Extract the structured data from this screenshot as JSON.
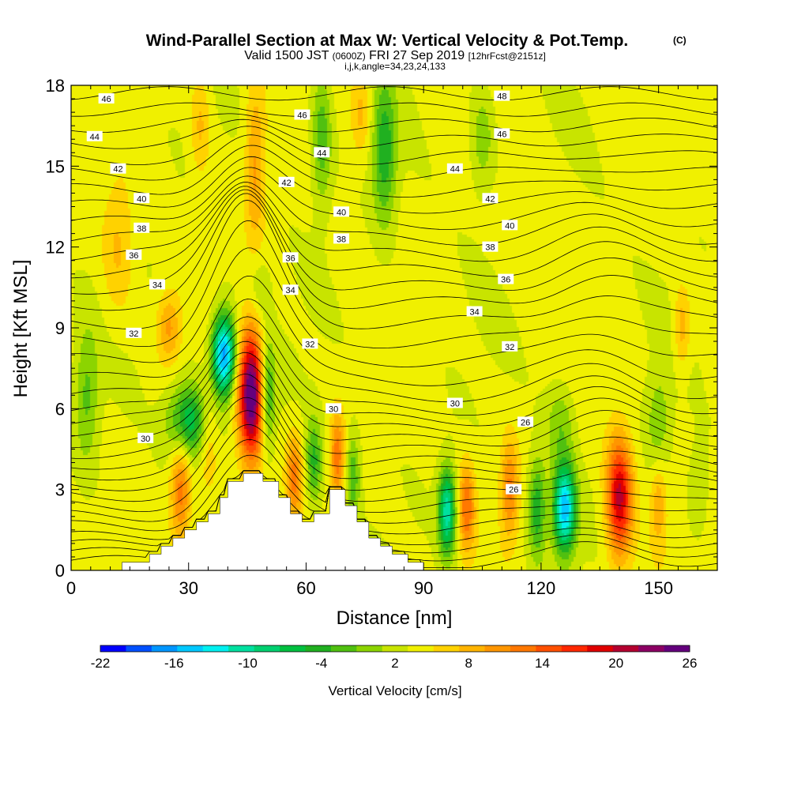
{
  "title": {
    "main": "Wind-Parallel Section at Max W: Vertical Velocity & Pot.Temp.",
    "copyright": "(C)",
    "valid_prefix": "Valid 1500 JST",
    "valid_zulu": "(0600Z)",
    "valid_date": "FRI 27 Sep 2019",
    "forecast": "[12hrFcst@2151z]",
    "params": "i,j,k,angle=34,23,24,133"
  },
  "chart_data": {
    "type": "heatmap",
    "xlabel": "Distance [nm]",
    "ylabel": "Height [Kft MSL]",
    "xlim": [
      0,
      165
    ],
    "ylim": [
      0,
      18
    ],
    "x_ticks": [
      0,
      30,
      60,
      90,
      120,
      150
    ],
    "y_ticks": [
      0,
      3,
      6,
      9,
      12,
      15,
      18
    ],
    "colorbar": {
      "title": "Vertical Velocity [cm/s]",
      "tick_labels": [
        "-22",
        "-16",
        "-10",
        "-4",
        "2",
        "8",
        "14",
        "20",
        "26"
      ],
      "colors": [
        "#0000ff",
        "#0050ff",
        "#0096ff",
        "#00c8ff",
        "#00f0f0",
        "#00e0a0",
        "#00d070",
        "#00c040",
        "#20b020",
        "#50c010",
        "#8cd400",
        "#c8e400",
        "#f0f000",
        "#ffd200",
        "#ffb400",
        "#ff9600",
        "#ff7800",
        "#ff5000",
        "#ff2800",
        "#e00000",
        "#b40030",
        "#8c0064",
        "#64007d"
      ]
    },
    "terrain_nm_kft": [
      [
        0,
        0
      ],
      [
        10,
        0
      ],
      [
        13,
        0
      ],
      [
        13,
        0.3
      ],
      [
        20,
        0.3
      ],
      [
        20,
        0.6
      ],
      [
        23,
        0.6
      ],
      [
        23,
        0.9
      ],
      [
        26,
        0.9
      ],
      [
        26,
        1.2
      ],
      [
        29,
        1.2
      ],
      [
        29,
        1.5
      ],
      [
        32,
        1.5
      ],
      [
        32,
        1.8
      ],
      [
        35,
        1.8
      ],
      [
        35,
        2.1
      ],
      [
        38,
        2.1
      ],
      [
        38,
        2.7
      ],
      [
        40,
        2.7
      ],
      [
        40,
        3.3
      ],
      [
        44,
        3.3
      ],
      [
        44,
        3.6
      ],
      [
        49,
        3.6
      ],
      [
        49,
        3.3
      ],
      [
        53,
        3.3
      ],
      [
        53,
        2.7
      ],
      [
        56,
        2.7
      ],
      [
        56,
        2.1
      ],
      [
        59,
        2.1
      ],
      [
        59,
        1.8
      ],
      [
        62,
        1.8
      ],
      [
        62,
        2.1
      ],
      [
        66,
        2.1
      ],
      [
        66,
        3.0
      ],
      [
        70,
        3.0
      ],
      [
        70,
        2.4
      ],
      [
        73,
        2.4
      ],
      [
        73,
        1.8
      ],
      [
        76,
        1.8
      ],
      [
        76,
        1.2
      ],
      [
        79,
        1.2
      ],
      [
        79,
        0.9
      ],
      [
        82,
        0.9
      ],
      [
        82,
        0.6
      ],
      [
        86,
        0.6
      ],
      [
        86,
        0.3
      ],
      [
        90,
        0.3
      ],
      [
        90,
        0
      ],
      [
        165,
        0
      ]
    ],
    "updrafts": [
      {
        "x": 46,
        "y": 6.5,
        "w": 22,
        "sx": 3.2,
        "sy": 2.4
      },
      {
        "x": 28,
        "y": 3.0,
        "w": 9,
        "sx": 2.6,
        "sy": 2.0
      },
      {
        "x": 35,
        "y": 5.0,
        "w": 4,
        "sx": 2.5,
        "sy": 2.0
      },
      {
        "x": 25,
        "y": 9.0,
        "w": 6,
        "sx": 3.0,
        "sy": 1.3
      },
      {
        "x": 57,
        "y": 3.5,
        "w": 8,
        "sx": 2.0,
        "sy": 1.6
      },
      {
        "x": 68,
        "y": 4.2,
        "w": 9,
        "sx": 1.8,
        "sy": 1.6
      },
      {
        "x": 101,
        "y": 2.3,
        "w": 9,
        "sx": 2.0,
        "sy": 1.6
      },
      {
        "x": 112,
        "y": 3.0,
        "w": 8,
        "sx": 2.3,
        "sy": 1.8
      },
      {
        "x": 140,
        "y": 2.7,
        "w": 16,
        "sx": 3.2,
        "sy": 2.2
      },
      {
        "x": 47,
        "y": 15.0,
        "w": 6,
        "sx": 2.5,
        "sy": 3.0
      },
      {
        "x": 33,
        "y": 16.5,
        "w": 4,
        "sx": 2.5,
        "sy": 2.0
      },
      {
        "x": 12,
        "y": 12.0,
        "w": 4,
        "sx": 4.0,
        "sy": 2.5
      },
      {
        "x": 74,
        "y": 17.0,
        "w": 4,
        "sx": 2.5,
        "sy": 1.5
      },
      {
        "x": 156,
        "y": 9.0,
        "w": 5,
        "sx": 2.0,
        "sy": 1.5
      },
      {
        "x": 150,
        "y": 2.5,
        "w": 5,
        "sx": 2.0,
        "sy": 1.6
      }
    ],
    "downdrafts": [
      {
        "x": 39,
        "y": 8.0,
        "w": -20,
        "sx": 3.0,
        "sy": 1.5
      },
      {
        "x": 30,
        "y": 5.5,
        "w": -11,
        "sx": 5.0,
        "sy": 1.4
      },
      {
        "x": 50,
        "y": 6.5,
        "w": -9,
        "sx": 2.0,
        "sy": 2.0
      },
      {
        "x": 126,
        "y": 2.3,
        "w": -18,
        "sx": 2.8,
        "sy": 1.6
      },
      {
        "x": 96,
        "y": 2.2,
        "w": -14,
        "sx": 2.2,
        "sy": 1.6
      },
      {
        "x": 119,
        "y": 2.3,
        "w": -8,
        "sx": 2.2,
        "sy": 1.8
      },
      {
        "x": 62,
        "y": 4.0,
        "w": -7,
        "sx": 2.0,
        "sy": 1.6
      },
      {
        "x": 72,
        "y": 3.5,
        "w": -6,
        "sx": 1.8,
        "sy": 1.6
      },
      {
        "x": 80,
        "y": 15.5,
        "w": -8,
        "sx": 3.0,
        "sy": 2.6
      },
      {
        "x": 64,
        "y": 16.0,
        "w": -6,
        "sx": 2.5,
        "sy": 2.5
      },
      {
        "x": 105,
        "y": 16.0,
        "w": -4,
        "sx": 3.0,
        "sy": 2.0
      },
      {
        "x": 4,
        "y": 6.5,
        "w": -5,
        "sx": 3.0,
        "sy": 2.5
      },
      {
        "x": 125,
        "y": 5.5,
        "w": -4,
        "sx": 3.5,
        "sy": 1.5
      },
      {
        "x": 150,
        "y": 5.5,
        "w": -4,
        "sx": 3.0,
        "sy": 1.8
      },
      {
        "x": 160,
        "y": 3.0,
        "w": -3,
        "sx": 2.5,
        "sy": 1.5
      },
      {
        "x": 48,
        "y": 10.5,
        "w": -3,
        "sx": 2.5,
        "sy": 1.2
      }
    ],
    "isentrope_labels": [
      {
        "value": "46",
        "x": 9,
        "y": 17.5
      },
      {
        "value": "44",
        "x": 6,
        "y": 16.1
      },
      {
        "value": "42",
        "x": 12,
        "y": 14.9
      },
      {
        "value": "40",
        "x": 18,
        "y": 13.8
      },
      {
        "value": "38",
        "x": 18,
        "y": 12.7
      },
      {
        "value": "36",
        "x": 16,
        "y": 11.7
      },
      {
        "value": "34",
        "x": 22,
        "y": 10.6
      },
      {
        "value": "32",
        "x": 16,
        "y": 8.8
      },
      {
        "value": "30",
        "x": 19,
        "y": 4.9
      },
      {
        "value": "46",
        "x": 59,
        "y": 16.9
      },
      {
        "value": "44",
        "x": 64,
        "y": 15.5
      },
      {
        "value": "42",
        "x": 55,
        "y": 14.4
      },
      {
        "value": "40",
        "x": 69,
        "y": 13.3
      },
      {
        "value": "38",
        "x": 69,
        "y": 12.3
      },
      {
        "value": "36",
        "x": 56,
        "y": 11.6
      },
      {
        "value": "34",
        "x": 56,
        "y": 10.4
      },
      {
        "value": "32",
        "x": 61,
        "y": 8.4
      },
      {
        "value": "30",
        "x": 67,
        "y": 6.0
      },
      {
        "value": "48",
        "x": 110,
        "y": 17.6
      },
      {
        "value": "46",
        "x": 110,
        "y": 16.2
      },
      {
        "value": "44",
        "x": 98,
        "y": 14.9
      },
      {
        "value": "42",
        "x": 107,
        "y": 13.8
      },
      {
        "value": "40",
        "x": 112,
        "y": 12.8
      },
      {
        "value": "38",
        "x": 107,
        "y": 12.0
      },
      {
        "value": "36",
        "x": 111,
        "y": 10.8
      },
      {
        "value": "34",
        "x": 103,
        "y": 9.6
      },
      {
        "value": "32",
        "x": 112,
        "y": 8.3
      },
      {
        "value": "30",
        "x": 98,
        "y": 6.2
      },
      {
        "value": "26",
        "x": 116,
        "y": 5.5
      },
      {
        "value": "26",
        "x": 113,
        "y": 3.0
      }
    ]
  }
}
